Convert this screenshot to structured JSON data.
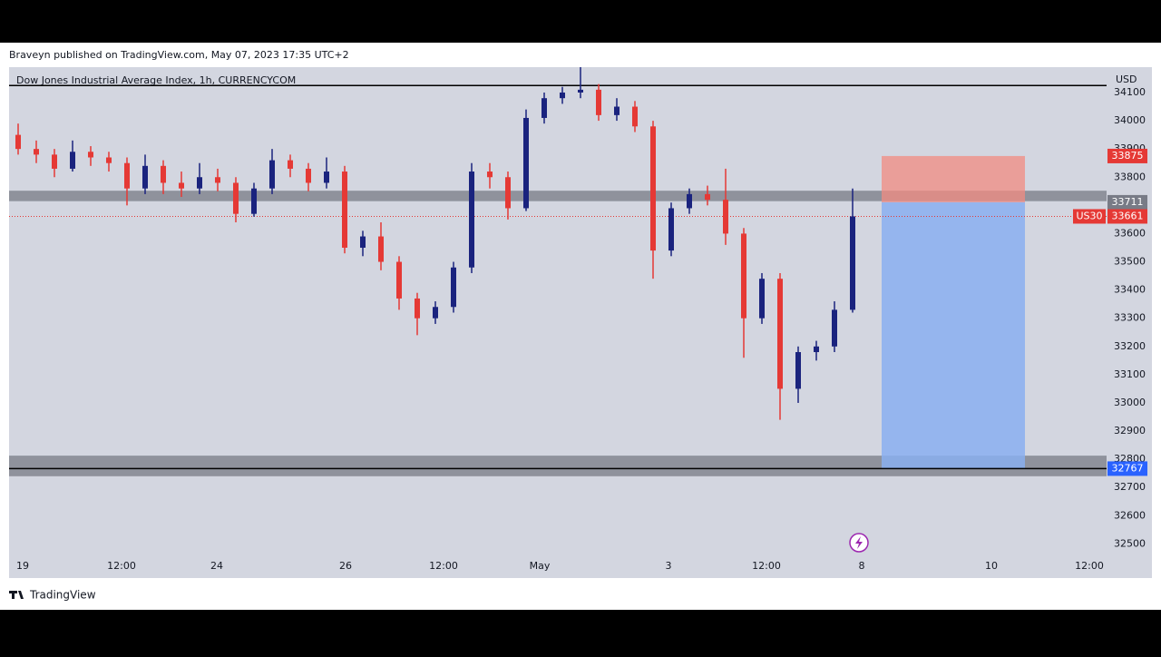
{
  "header": {
    "text": "Braveyn published on TradingView.com, May 07, 2023 17:35 UTC+2"
  },
  "footer": {
    "text": "TradingView"
  },
  "chart_data": {
    "type": "candlestick",
    "title": "Dow Jones Industrial Average Index, 1h, CURRENCYCOM",
    "currency": "USD",
    "symbol": "US30",
    "up_color": "#1a237e",
    "down_color": "#e53935",
    "candles": [
      [
        33950,
        33990,
        33880,
        33900
      ],
      [
        33900,
        33930,
        33850,
        33880
      ],
      [
        33880,
        33900,
        33800,
        33830
      ],
      [
        33830,
        33930,
        33820,
        33890
      ],
      [
        33890,
        33910,
        33840,
        33870
      ],
      [
        33870,
        33890,
        33820,
        33850
      ],
      [
        33850,
        33870,
        33700,
        33760
      ],
      [
        33760,
        33880,
        33740,
        33840
      ],
      [
        33840,
        33860,
        33740,
        33780
      ],
      [
        33780,
        33820,
        33730,
        33760
      ],
      [
        33760,
        33850,
        33740,
        33800
      ],
      [
        33800,
        33830,
        33750,
        33780
      ],
      [
        33780,
        33800,
        33640,
        33670
      ],
      [
        33670,
        33780,
        33660,
        33760
      ],
      [
        33760,
        33900,
        33740,
        33860
      ],
      [
        33860,
        33880,
        33800,
        33830
      ],
      [
        33830,
        33850,
        33750,
        33780
      ],
      [
        33780,
        33870,
        33760,
        33820
      ],
      [
        33820,
        33840,
        33530,
        33550
      ],
      [
        33550,
        33610,
        33520,
        33590
      ],
      [
        33590,
        33640,
        33470,
        33500
      ],
      [
        33500,
        33520,
        33330,
        33370
      ],
      [
        33370,
        33390,
        33240,
        33300
      ],
      [
        33300,
        33360,
        33280,
        33340
      ],
      [
        33340,
        33500,
        33320,
        33480
      ],
      [
        33480,
        33850,
        33460,
        33820
      ],
      [
        33820,
        33850,
        33760,
        33800
      ],
      [
        33800,
        33820,
        33650,
        33690
      ],
      [
        33690,
        34040,
        33680,
        34010
      ],
      [
        34010,
        34100,
        33990,
        34080
      ],
      [
        34080,
        34120,
        34060,
        34100
      ],
      [
        34100,
        34190,
        34080,
        34110
      ],
      [
        34110,
        34130,
        34000,
        34020
      ],
      [
        34020,
        34080,
        34000,
        34050
      ],
      [
        34050,
        34070,
        33960,
        33980
      ],
      [
        33980,
        34000,
        33440,
        33540
      ],
      [
        33540,
        33710,
        33520,
        33690
      ],
      [
        33690,
        33760,
        33670,
        33740
      ],
      [
        33740,
        33770,
        33700,
        33720
      ],
      [
        33720,
        33830,
        33560,
        33600
      ],
      [
        33600,
        33620,
        33160,
        33300
      ],
      [
        33300,
        33460,
        33280,
        33440
      ],
      [
        33440,
        33460,
        32940,
        33050
      ],
      [
        33050,
        33200,
        33000,
        33180
      ],
      [
        33180,
        33220,
        33150,
        33200
      ],
      [
        33200,
        33360,
        33180,
        33330
      ],
      [
        33330,
        33760,
        33320,
        33661
      ]
    ],
    "xlim": [
      0,
      60.5
    ],
    "xticks": [
      {
        "value": 0.75,
        "label": "19"
      },
      {
        "value": 6.2,
        "label": "12:00"
      },
      {
        "value": 11.45,
        "label": "24"
      },
      {
        "value": 18.55,
        "label": "26"
      },
      {
        "value": 23.95,
        "label": "12:00"
      },
      {
        "value": 29.25,
        "label": "May"
      },
      {
        "value": 36.35,
        "label": "3"
      },
      {
        "value": 41.75,
        "label": "12:00"
      },
      {
        "value": 47,
        "label": "8"
      },
      {
        "value": 54.15,
        "label": "10"
      },
      {
        "value": 59.55,
        "label": "12:00"
      }
    ],
    "ylim": [
      32466,
      34190
    ],
    "yticks": [
      32500,
      32600,
      32700,
      32800,
      32900,
      33000,
      33100,
      33200,
      33300,
      33400,
      33500,
      33600,
      33700,
      33800,
      33900,
      34000,
      34100
    ],
    "zones": [
      [
        33715,
        33752
      ],
      [
        32740,
        32813
      ]
    ],
    "lines": [
      34125,
      32767
    ],
    "last_price": 33661,
    "position": {
      "x": [
        48.1,
        56
      ],
      "entry": 33711,
      "stop": 33875,
      "target": 32767
    }
  }
}
